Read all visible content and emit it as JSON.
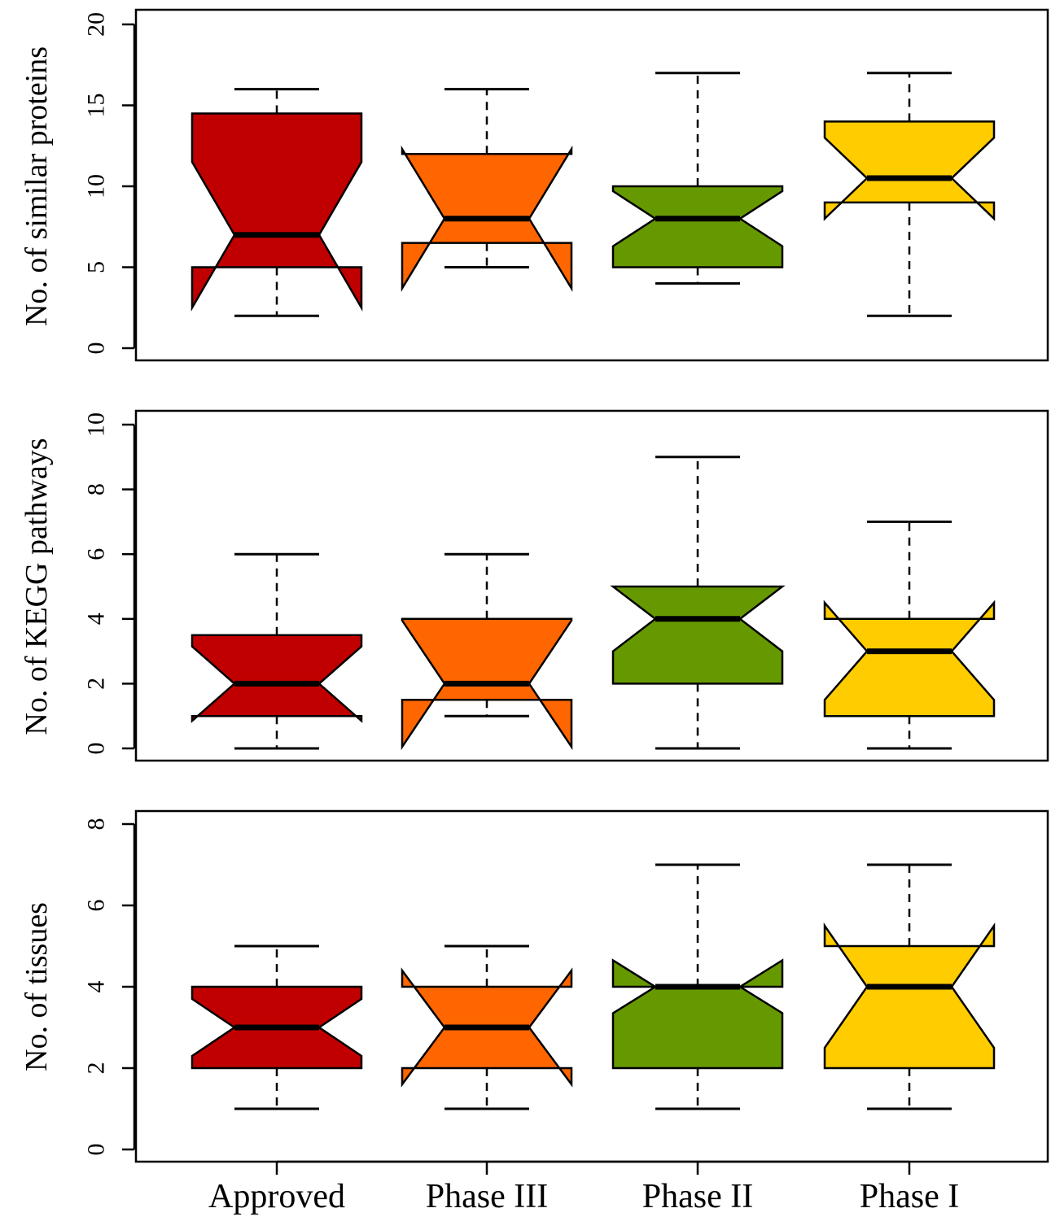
{
  "chart_data": [
    {
      "type": "boxplot",
      "ylabel": "No. of similar proteins",
      "ylim": [
        0,
        20
      ],
      "yticks": [
        0,
        5,
        10,
        15,
        20
      ],
      "categories": [
        "Approved",
        "Phase III",
        "Phase II",
        "Phase I"
      ],
      "boxes": [
        {
          "category": "Approved",
          "whisker_low": 2,
          "q1": 5,
          "median": 7,
          "q3": 14.5,
          "whisker_high": 16,
          "notch_low": 2.5,
          "notch_high": 11.5,
          "color": "#C00000"
        },
        {
          "category": "Phase III",
          "whisker_low": 5,
          "q1": 6.5,
          "median": 8,
          "q3": 12,
          "whisker_high": 16,
          "notch_low": 3.7,
          "notch_high": 12.3,
          "color": "#FF6600"
        },
        {
          "category": "Phase II",
          "whisker_low": 4,
          "q1": 5,
          "median": 8,
          "q3": 10,
          "whisker_high": 17,
          "notch_low": 6.3,
          "notch_high": 9.7,
          "color": "#669900"
        },
        {
          "category": "Phase I",
          "whisker_low": 2,
          "q1": 9,
          "median": 10.5,
          "q3": 14,
          "whisker_high": 17,
          "notch_low": 8,
          "notch_high": 13,
          "color": "#FFCC00"
        }
      ]
    },
    {
      "type": "boxplot",
      "ylabel": "No. of KEGG pathways",
      "ylim": [
        0,
        10
      ],
      "yticks": [
        0,
        2,
        4,
        6,
        8,
        10
      ],
      "categories": [
        "Approved",
        "Phase III",
        "Phase II",
        "Phase I"
      ],
      "boxes": [
        {
          "category": "Approved",
          "whisker_low": 0,
          "q1": 1,
          "median": 2,
          "q3": 3.5,
          "whisker_high": 6,
          "notch_low": 0.85,
          "notch_high": 3.15,
          "color": "#C00000"
        },
        {
          "category": "Phase III",
          "whisker_low": 1,
          "q1": 1.5,
          "median": 2,
          "q3": 4,
          "whisker_high": 6,
          "notch_low": 0.05,
          "notch_high": 3.95,
          "color": "#FF6600"
        },
        {
          "category": "Phase II",
          "whisker_low": 0,
          "q1": 2,
          "median": 4,
          "q3": 5,
          "whisker_high": 9,
          "notch_low": 3,
          "notch_high": 5,
          "color": "#669900"
        },
        {
          "category": "Phase I",
          "whisker_low": 0,
          "q1": 1,
          "median": 3,
          "q3": 4,
          "whisker_high": 7,
          "notch_low": 1.5,
          "notch_high": 4.5,
          "color": "#FFCC00"
        }
      ]
    },
    {
      "type": "boxplot",
      "ylabel": "No. of tissues",
      "ylim": [
        0,
        8
      ],
      "yticks": [
        0,
        2,
        4,
        6,
        8
      ],
      "categories": [
        "Approved",
        "Phase III",
        "Phase II",
        "Phase I"
      ],
      "boxes": [
        {
          "category": "Approved",
          "whisker_low": 1,
          "q1": 2,
          "median": 3,
          "q3": 4,
          "whisker_high": 5,
          "notch_low": 2.3,
          "notch_high": 3.7,
          "color": "#C00000"
        },
        {
          "category": "Phase III",
          "whisker_low": 1,
          "q1": 2,
          "median": 3,
          "q3": 4,
          "whisker_high": 5,
          "notch_low": 1.6,
          "notch_high": 4.4,
          "color": "#FF6600"
        },
        {
          "category": "Phase II",
          "whisker_low": 1,
          "q1": 2,
          "median": 4,
          "q3": 4,
          "whisker_high": 7,
          "notch_low": 3.35,
          "notch_high": 4.65,
          "color": "#669900"
        },
        {
          "category": "Phase I",
          "whisker_low": 1,
          "q1": 2,
          "median": 4,
          "q3": 5,
          "whisker_high": 7,
          "notch_low": 2.5,
          "notch_high": 5.5,
          "color": "#FFCC00"
        }
      ]
    }
  ]
}
